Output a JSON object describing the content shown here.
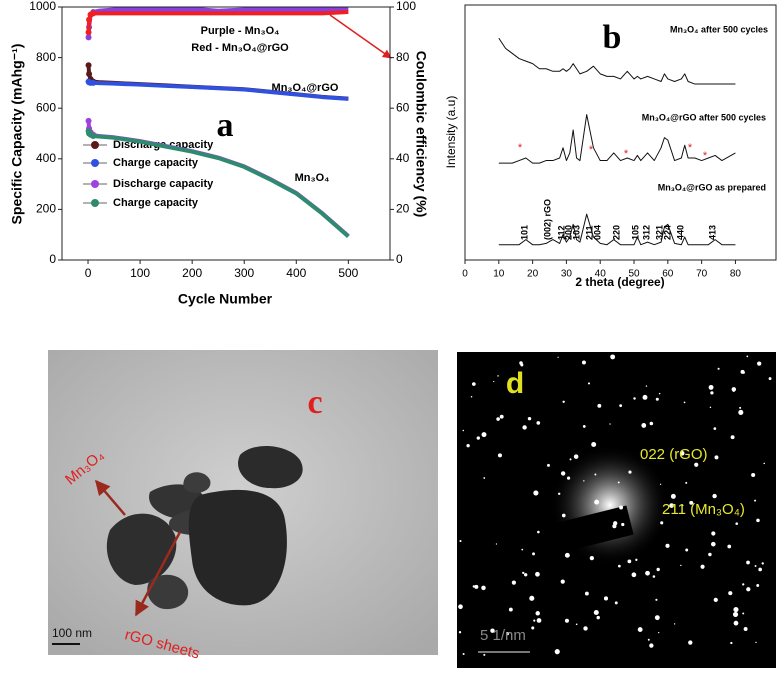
{
  "chart_data": [
    {
      "type": "line",
      "panel_label": "a",
      "xlabel": "Cycle Number",
      "ylabel": "Specific Capacity (mAhg⁻¹)",
      "y2label": "Coulombic efficiency (%)",
      "x": [
        1,
        2,
        5,
        10,
        20,
        50,
        100,
        150,
        200,
        220,
        250,
        300,
        350,
        400,
        450,
        500
      ],
      "xlim": [
        -50,
        580
      ],
      "xticks": [
        0,
        100,
        200,
        300,
        400,
        500
      ],
      "ylim": [
        0,
        1000
      ],
      "yticks": [
        0,
        200,
        400,
        600,
        800,
        1000
      ],
      "y2lim": [
        0,
        100
      ],
      "y2ticks": [
        0,
        20,
        40,
        60,
        80,
        100
      ],
      "legend": "lower left",
      "series": [
        {
          "name": "Discharge capacity",
          "color": "#5a1a1a",
          "values": [
            770,
            735,
            715,
            705,
            703,
            700,
            695,
            690,
            685,
            683,
            680,
            675,
            665,
            655,
            645,
            638
          ]
        },
        {
          "name": "Charge capacity",
          "color": "#3050e0",
          "values": [
            705,
            702,
            700,
            700,
            699,
            697,
            693,
            688,
            684,
            682,
            679,
            674,
            664,
            654,
            644,
            637
          ]
        },
        {
          "name": "Discharge capacity",
          "color": "#a040e0",
          "values": [
            550,
            520,
            505,
            495,
            490,
            485,
            470,
            450,
            430,
            420,
            405,
            370,
            320,
            265,
            185,
            95
          ]
        },
        {
          "name": "Charge capacity",
          "color": "#2e8b6e",
          "values": [
            510,
            500,
            495,
            490,
            488,
            483,
            468,
            448,
            428,
            418,
            403,
            368,
            318,
            263,
            183,
            93
          ]
        },
        {
          "name": "Purple - Mn₃O₄",
          "color": "#8a40e0",
          "axis": "y2",
          "values": [
            88,
            92,
            97,
            98,
            98.5,
            99,
            99,
            99,
            99,
            99,
            98.5,
            99,
            99,
            99,
            99,
            99
          ]
        },
        {
          "name": "Red - Mn₃O₄@rGO",
          "color": "#f02020",
          "axis": "y2",
          "values": [
            90,
            95,
            97,
            97.5,
            97.5,
            97.5,
            97.5,
            97.5,
            97.5,
            97.5,
            97.5,
            97.5,
            97.5,
            97.5,
            97.5,
            98
          ]
        }
      ],
      "annotations": [
        "Mn₃O₄@rGO",
        "Mn₃O₄"
      ]
    },
    {
      "type": "line",
      "panel_label": "b",
      "xlabel": "2 theta (degree)",
      "ylabel": "Intensity (a.u)",
      "x": [
        10,
        12,
        14,
        16,
        18,
        20,
        22,
        24,
        26,
        28,
        29,
        30,
        31,
        32,
        33,
        34,
        36,
        38,
        40,
        42,
        44,
        46,
        48,
        50,
        51,
        52,
        54,
        56,
        58,
        59,
        60,
        62,
        64,
        65,
        66,
        68,
        70,
        72,
        74,
        76,
        80
      ],
      "xlim": [
        0,
        92
      ],
      "xticks": [
        0,
        10,
        20,
        30,
        40,
        50,
        60,
        70,
        80
      ],
      "ylim": [
        0,
        100
      ],
      "series": [
        {
          "name": "Mn₃O₄ after 500 cycles",
          "color": "#111111",
          "values": [
            87,
            83,
            81,
            79,
            78,
            77,
            75,
            75,
            74,
            74,
            75,
            74,
            75,
            77,
            75,
            73,
            74,
            76,
            73,
            72,
            72,
            71,
            74,
            71,
            72,
            71,
            72,
            71,
            70,
            73,
            71,
            70,
            71,
            73,
            70,
            69,
            69,
            69,
            69,
            69,
            69
          ]
        },
        {
          "name": "Mn₃O₄@rGO after 500 cycles",
          "color": "#111111",
          "values": [
            38,
            38,
            38,
            39,
            40,
            38,
            38,
            39,
            39,
            40,
            44,
            39,
            42,
            51,
            40,
            39,
            57,
            44,
            39,
            39,
            42,
            39,
            40,
            39,
            41,
            39,
            42,
            39,
            44,
            48,
            47,
            39,
            40,
            45,
            40,
            40,
            39,
            40,
            41,
            39,
            42
          ]
        },
        {
          "name": "Mn₃O₄@rGO as prepared",
          "color": "#111111",
          "values": [
            6,
            6,
            6,
            6,
            8,
            6,
            6,
            6.5,
            8,
            6.5,
            10,
            7,
            9,
            14,
            8,
            7,
            18,
            9,
            6.5,
            6,
            8,
            6,
            6,
            6,
            9,
            6,
            7,
            6,
            7,
            13,
            14,
            6.5,
            6,
            9,
            6,
            6,
            6,
            6,
            8,
            6,
            6
          ]
        }
      ],
      "peak_labels": [
        "101",
        "(002) rGO",
        "112",
        "200",
        "103",
        "211",
        "004",
        "220",
        "105",
        "312",
        "321",
        "224",
        "440",
        "413"
      ],
      "impurity_marks": [
        "*",
        "*",
        "*",
        "*",
        "*"
      ]
    }
  ],
  "images": [
    {
      "panel_label": "c",
      "annotations": [
        "Mn₃O₄",
        "rGO sheets"
      ],
      "scale_bar": "100 nm"
    },
    {
      "panel_label": "d",
      "annotations": [
        "022 (rGO)",
        "211 (Mn₃O₄)"
      ],
      "scale_bar": "5 1/nm"
    }
  ]
}
